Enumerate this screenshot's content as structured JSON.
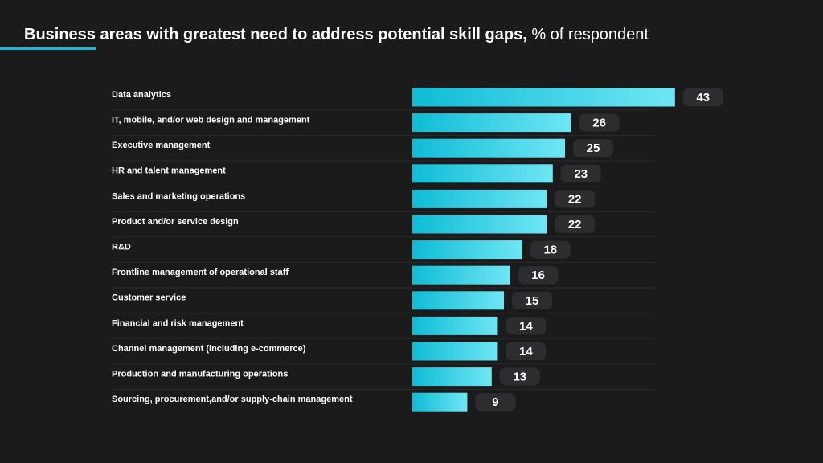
{
  "title": {
    "bold": "Business areas with greatest need to address potential skill gaps,",
    "light": "% of respondent"
  },
  "colors": {
    "background": "#1b1b1c",
    "accent": "#1fb5d6",
    "bar_start": "#0fbcd6",
    "bar_end": "#6fe6f4",
    "pill": "#2d2d2f",
    "separator": "#2a2a2c"
  },
  "chart_data": {
    "type": "bar",
    "orientation": "horizontal",
    "categories": [
      "Data analytics",
      "IT, mobile, and/or web design and management",
      "Executive management",
      "HR and talent management",
      "Sales and marketing operations",
      "Product and/or service design",
      "R&D",
      "Frontline management of operational staff",
      "Customer service",
      "Financial and risk management",
      "Channel management (including e-commerce)",
      "Production and manufacturing operations",
      "Sourcing, procurement,and/or supply-chain management"
    ],
    "values": [
      43,
      26,
      25,
      23,
      22,
      22,
      18,
      16,
      15,
      14,
      14,
      13,
      9
    ],
    "data_labels": [
      "43",
      "26",
      "25",
      "23",
      "22",
      "22",
      "18",
      "16",
      "15",
      "14",
      "14",
      "13",
      "9"
    ],
    "grid": false,
    "legend": "none"
  }
}
